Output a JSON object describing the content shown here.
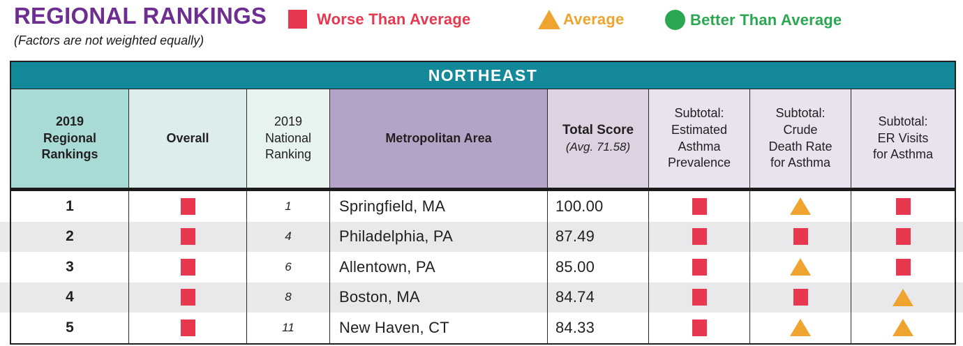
{
  "header": {
    "title": "REGIONAL RANKINGS",
    "subtitle": "(Factors are not weighted equally)"
  },
  "legend": [
    {
      "icon": "worse-square",
      "label": "Worse Than Average",
      "color": "#e73850"
    },
    {
      "icon": "average-triangle",
      "label": "Average",
      "color": "#efa42f"
    },
    {
      "icon": "better-circle",
      "label": "Better Than Average",
      "color": "#2aa851"
    }
  ],
  "table": {
    "region_title": "NORTHEAST",
    "columns": [
      {
        "label": "2019\nRegional\nRankings"
      },
      {
        "label": "Overall"
      },
      {
        "label": "2019\nNational\nRanking"
      },
      {
        "label": "Metropolitan Area"
      },
      {
        "label": "Total Score",
        "note": "(Avg. 71.58)"
      },
      {
        "label": "Subtotal:\nEstimated\nAsthma\nPrevalence"
      },
      {
        "label": "Subtotal:\nCrude\nDeath Rate\nfor Asthma"
      },
      {
        "label": "Subtotal:\nER Visits\nfor Asthma"
      }
    ],
    "rows": [
      {
        "regional_rank": "1",
        "overall": "worse",
        "national_rank": "1",
        "metro_area": "Springfield, MA",
        "total_score": "100.00",
        "asthma_prevalence": "worse",
        "death_rate": "average",
        "er_visits": "worse"
      },
      {
        "regional_rank": "2",
        "overall": "worse",
        "national_rank": "4",
        "metro_area": "Philadelphia, PA",
        "total_score": "87.49",
        "asthma_prevalence": "worse",
        "death_rate": "worse",
        "er_visits": "worse"
      },
      {
        "regional_rank": "3",
        "overall": "worse",
        "national_rank": "6",
        "metro_area": "Allentown, PA",
        "total_score": "85.00",
        "asthma_prevalence": "worse",
        "death_rate": "average",
        "er_visits": "worse"
      },
      {
        "regional_rank": "4",
        "overall": "worse",
        "national_rank": "8",
        "metro_area": "Boston, MA",
        "total_score": "84.74",
        "asthma_prevalence": "worse",
        "death_rate": "worse",
        "er_visits": "average"
      },
      {
        "regional_rank": "5",
        "overall": "worse",
        "national_rank": "11",
        "metro_area": "New Haven, CT",
        "total_score": "84.33",
        "asthma_prevalence": "worse",
        "death_rate": "average",
        "er_visits": "average"
      }
    ]
  },
  "colors": {
    "title_purple": "#6e2e91",
    "region_bar_teal": "#13899a",
    "worse_red": "#e73850",
    "average_orange": "#efa42f",
    "better_green": "#2aa851",
    "stripe_gray": "#e9e9eb"
  }
}
